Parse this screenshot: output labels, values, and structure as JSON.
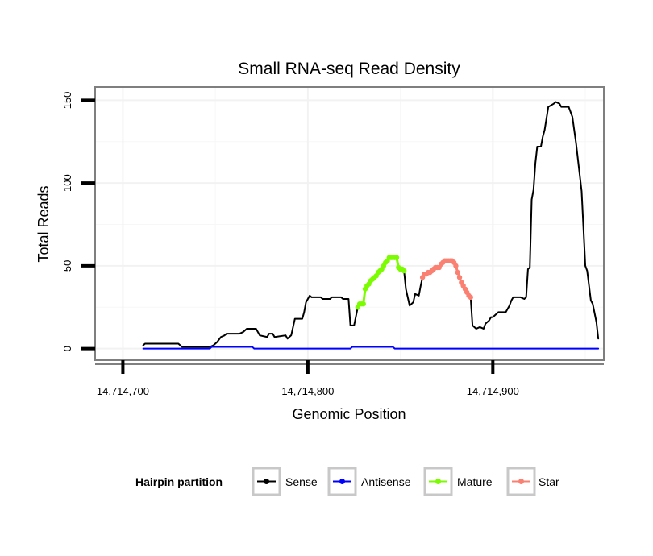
{
  "chart_data": {
    "type": "line",
    "title": "Small RNA-seq Read Density",
    "xlabel": "Genomic Position",
    "ylabel": "Total Reads",
    "xlim": [
      14714685,
      14714960
    ],
    "ylim": [
      -7,
      158
    ],
    "x_ticks": [
      14714700,
      14714800,
      14714900
    ],
    "x_tick_labels": [
      "14,714,700",
      "14,714,800",
      "14,714,900"
    ],
    "y_ticks": [
      0,
      50,
      100,
      150
    ],
    "y_tick_labels": [
      "0",
      "50",
      "100",
      "150"
    ],
    "grid": true,
    "legend": {
      "title": "Hairpin partition",
      "position": "bottom",
      "entries": [
        {
          "label": "Sense",
          "color": "#000000"
        },
        {
          "label": "Antisense",
          "color": "#0000ff"
        },
        {
          "label": "Mature",
          "color": "#7cfc00"
        },
        {
          "label": "Star",
          "color": "#fa8072"
        }
      ]
    },
    "series": [
      {
        "name": "Sense",
        "color": "#000000",
        "points": [
          [
            14714711,
            2
          ],
          [
            14714712,
            3
          ],
          [
            14714730,
            3
          ],
          [
            14714732,
            1
          ],
          [
            14714747,
            1
          ],
          [
            14714749,
            2
          ],
          [
            14714751,
            4
          ],
          [
            14714753,
            7
          ],
          [
            14714755,
            8
          ],
          [
            14714756,
            9
          ],
          [
            14714763,
            9
          ],
          [
            14714765,
            10
          ],
          [
            14714767,
            12
          ],
          [
            14714772,
            12
          ],
          [
            14714773,
            10
          ],
          [
            14714774,
            8
          ],
          [
            14714778,
            7
          ],
          [
            14714779,
            9
          ],
          [
            14714781,
            9
          ],
          [
            14714782,
            7
          ],
          [
            14714788,
            8
          ],
          [
            14714789,
            6
          ],
          [
            14714791,
            8
          ],
          [
            14714792,
            13
          ],
          [
            14714793,
            18
          ],
          [
            14714797,
            18
          ],
          [
            14714798,
            22
          ],
          [
            14714799,
            28
          ],
          [
            14714801,
            32
          ],
          [
            14714802,
            31
          ],
          [
            14714807,
            31
          ],
          [
            14714808,
            30
          ],
          [
            14714812,
            30
          ],
          [
            14714813,
            31
          ],
          [
            14714818,
            31
          ],
          [
            14714819,
            30
          ],
          [
            14714822,
            30
          ],
          [
            14714823,
            14
          ],
          [
            14714825,
            14
          ],
          [
            14714827,
            25
          ],
          [
            14714829,
            27
          ],
          [
            14714830,
            27
          ],
          [
            14714831,
            36
          ],
          [
            14714833,
            39
          ],
          [
            14714835,
            42
          ],
          [
            14714837,
            44
          ],
          [
            14714840,
            48
          ],
          [
            14714842,
            52
          ],
          [
            14714844,
            55
          ],
          [
            14714848,
            55
          ],
          [
            14714849,
            49
          ],
          [
            14714852,
            47
          ],
          [
            14714853,
            36
          ],
          [
            14714855,
            26
          ],
          [
            14714857,
            28
          ],
          [
            14714858,
            33
          ],
          [
            14714860,
            32
          ],
          [
            14714861,
            38
          ],
          [
            14714862,
            43
          ],
          [
            14714863,
            45
          ],
          [
            14714865,
            46
          ],
          [
            14714867,
            47
          ],
          [
            14714869,
            49
          ],
          [
            14714871,
            49
          ],
          [
            14714874,
            53
          ],
          [
            14714878,
            53
          ],
          [
            14714880,
            50
          ],
          [
            14714882,
            43
          ],
          [
            14714884,
            38
          ],
          [
            14714886,
            34
          ],
          [
            14714888,
            31
          ],
          [
            14714889,
            14
          ],
          [
            14714891,
            12
          ],
          [
            14714893,
            13
          ],
          [
            14714895,
            12
          ],
          [
            14714896,
            15
          ],
          [
            14714898,
            17
          ],
          [
            14714899,
            19
          ],
          [
            14714900,
            19
          ],
          [
            14714903,
            22
          ],
          [
            14714907,
            22
          ],
          [
            14714909,
            26
          ],
          [
            14714910,
            29
          ],
          [
            14714911,
            31
          ],
          [
            14714915,
            31
          ],
          [
            14714917,
            30
          ],
          [
            14714918,
            31
          ],
          [
            14714919,
            48
          ],
          [
            14714920,
            49
          ],
          [
            14714921,
            90
          ],
          [
            14714922,
            96
          ],
          [
            14714923,
            112
          ],
          [
            14714924,
            122
          ],
          [
            14714926,
            122
          ],
          [
            14714927,
            128
          ],
          [
            14714928,
            132
          ],
          [
            14714930,
            146
          ],
          [
            14714933,
            148
          ],
          [
            14714934,
            149
          ],
          [
            14714936,
            148
          ],
          [
            14714937,
            146
          ],
          [
            14714941,
            146
          ],
          [
            14714943,
            140
          ],
          [
            14714945,
            124
          ],
          [
            14714948,
            95
          ],
          [
            14714950,
            50
          ],
          [
            14714951,
            47
          ],
          [
            14714953,
            29
          ],
          [
            14714954,
            27
          ],
          [
            14714956,
            16
          ],
          [
            14714957,
            6
          ]
        ]
      },
      {
        "name": "Antisense",
        "color": "#0000ff",
        "points": [
          [
            14714711,
            0
          ],
          [
            14714747,
            0
          ],
          [
            14714748,
            1
          ],
          [
            14714770,
            1
          ],
          [
            14714771,
            0
          ],
          [
            14714823,
            0
          ],
          [
            14714824,
            1
          ],
          [
            14714846,
            1
          ],
          [
            14714847,
            0
          ],
          [
            14714957,
            0
          ]
        ]
      },
      {
        "name": "Mature",
        "color": "#7cfc00",
        "points": [
          [
            14714827,
            25
          ],
          [
            14714828,
            27
          ],
          [
            14714829,
            27
          ],
          [
            14714830,
            27
          ],
          [
            14714831,
            36
          ],
          [
            14714832,
            38
          ],
          [
            14714833,
            39
          ],
          [
            14714834,
            41
          ],
          [
            14714835,
            42
          ],
          [
            14714836,
            43
          ],
          [
            14714837,
            44
          ],
          [
            14714838,
            46
          ],
          [
            14714839,
            47
          ],
          [
            14714840,
            48
          ],
          [
            14714841,
            50
          ],
          [
            14714842,
            52
          ],
          [
            14714843,
            53
          ],
          [
            14714844,
            55
          ],
          [
            14714845,
            55
          ],
          [
            14714846,
            55
          ],
          [
            14714847,
            55
          ],
          [
            14714848,
            55
          ],
          [
            14714849,
            49
          ],
          [
            14714850,
            48
          ],
          [
            14714851,
            48
          ],
          [
            14714852,
            47
          ]
        ]
      },
      {
        "name": "Star",
        "color": "#fa8072",
        "points": [
          [
            14714862,
            43
          ],
          [
            14714863,
            45
          ],
          [
            14714864,
            45
          ],
          [
            14714865,
            46
          ],
          [
            14714866,
            46
          ],
          [
            14714867,
            47
          ],
          [
            14714868,
            48
          ],
          [
            14714869,
            49
          ],
          [
            14714870,
            49
          ],
          [
            14714871,
            49
          ],
          [
            14714872,
            51
          ],
          [
            14714873,
            52
          ],
          [
            14714874,
            53
          ],
          [
            14714875,
            53
          ],
          [
            14714876,
            53
          ],
          [
            14714877,
            53
          ],
          [
            14714878,
            53
          ],
          [
            14714879,
            52
          ],
          [
            14714880,
            50
          ],
          [
            14714881,
            46
          ],
          [
            14714882,
            43
          ],
          [
            14714883,
            40
          ],
          [
            14714884,
            38
          ],
          [
            14714885,
            36
          ],
          [
            14714886,
            34
          ],
          [
            14714887,
            32
          ],
          [
            14714888,
            31
          ]
        ]
      }
    ]
  }
}
